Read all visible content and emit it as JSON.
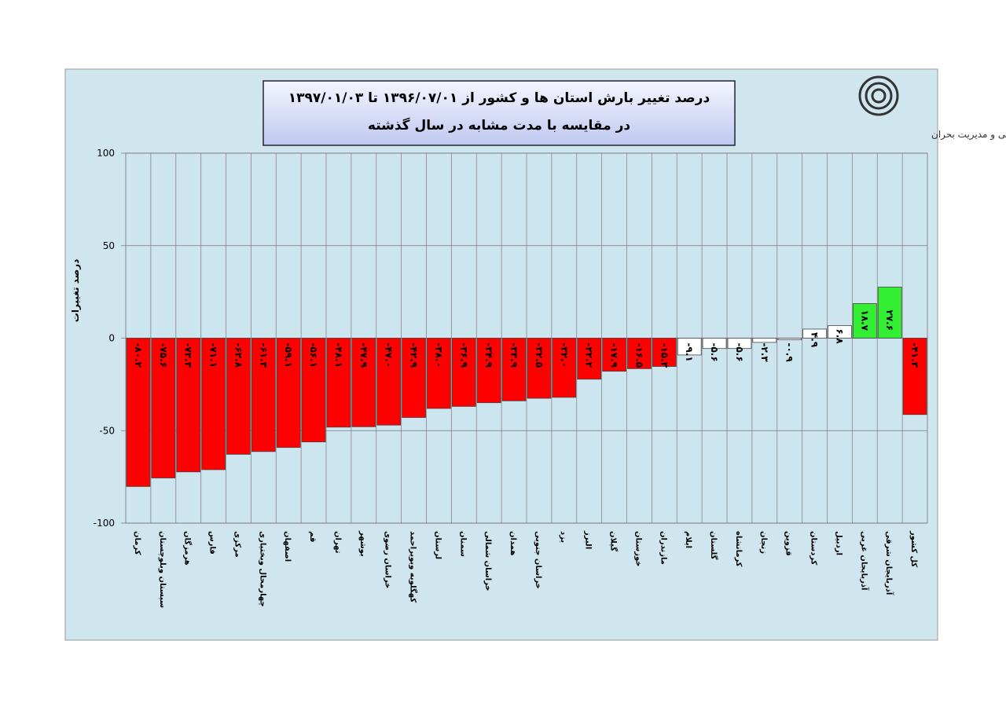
{
  "chart_data": {
    "type": "bar",
    "title": "درصد تغییر بارش استان ها و کشور از  ۱۳۹۶/۰۷/۰۱ تا ۱۳۹۷/۰۱/۰۳",
    "subtitle": "در مقایسه با مدت مشابه در سال گذشته",
    "org": "مرکز ملی خشکسالی و مدیریت بحران",
    "y_label": "درصد تغییرات",
    "categories": [
      "کرمان",
      "سیستان وبلوچستان",
      "هرمزگان",
      "فارس",
      "مرکزی",
      "چهارمحال وبختیاری",
      "اصفهان",
      "قم",
      "تهران",
      "بوشهر",
      "خراسان رضوی",
      "کهگلویه وبویراحمد",
      "لرستان",
      "سمنان",
      "خراسان شمالی",
      "همدان",
      "خراسان جنوبی",
      "یزد",
      "البرز",
      "گیلان",
      "خوزستان",
      "مازندران",
      "ایلام",
      "گلستان",
      "کرمانشاه",
      "زنجان",
      "قزوین",
      "کردستان",
      "اردبیل",
      "آذربایجان غربی",
      "آذربایجان شرقی",
      "کل کشور"
    ],
    "values": [
      -80.2,
      -75.6,
      -72.3,
      -71.1,
      -62.8,
      -61.3,
      -59.1,
      -56.1,
      -48.1,
      -47.9,
      -47.0,
      -42.9,
      -38.0,
      -36.9,
      -34.9,
      -33.9,
      -32.5,
      -32.0,
      -22.2,
      -17.9,
      -16.5,
      -15.3,
      -9.1,
      -5.6,
      -5.6,
      -2.3,
      -0.9,
      4.9,
      6.8,
      18.7,
      27.6,
      -41.3
    ],
    "value_labels": [
      "-۸۰.۲",
      "-۷۵.۶",
      "-۷۲.۳",
      "-۷۱.۱",
      "-۶۲.۸",
      "-۶۱.۳",
      "-۵۹.۱",
      "-۵۶.۱",
      "-۴۸.۱",
      "-۴۷.۹",
      "-۴۷.۰",
      "-۴۲.۹",
      "-۳۸.۰",
      "-۳۶.۹",
      "-۳۴.۹",
      "-۳۳.۹",
      "-۳۲.۵",
      "-۳۲.۰",
      "-۲۲.۲",
      "-۱۷.۹",
      "-۱۶.۵",
      "-۱۵.۳",
      "-۹.۱",
      "-۵.۶",
      "-۵.۶",
      "-۲.۳",
      "-۰.۹",
      "۴.۹",
      "۶.۸",
      "۱۸.۷",
      "۲۷.۶",
      "-۴۱.۳"
    ],
    "colors": [
      "#ff0000",
      "#ff0000",
      "#ff0000",
      "#ff0000",
      "#ff0000",
      "#ff0000",
      "#ff0000",
      "#ff0000",
      "#ff0000",
      "#ff0000",
      "#ff0000",
      "#ff0000",
      "#ff0000",
      "#ff0000",
      "#ff0000",
      "#ff0000",
      "#ff0000",
      "#ff0000",
      "#ff0000",
      "#ff0000",
      "#ff0000",
      "#ff0000",
      "#ffffff",
      "#ffffff",
      "#ffffff",
      "#ffffff",
      "#ffffff",
      "#ffffff",
      "#ffffff",
      "#33ee33",
      "#33ee33",
      "#ff0000"
    ],
    "ylim": [
      -100,
      100
    ],
    "yticks": [
      -100,
      -50,
      0,
      50,
      100
    ],
    "grid": true
  }
}
